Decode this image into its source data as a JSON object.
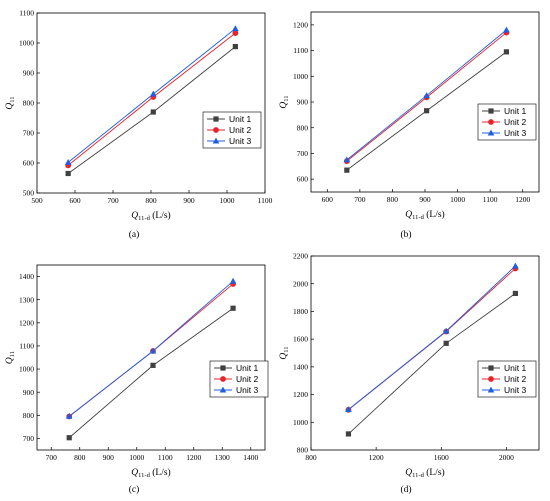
{
  "colors": {
    "unit1": "#404040",
    "unit2": "#e8232b",
    "unit3": "#1f5fe0"
  },
  "chart_data": [
    {
      "panel_label": "(a)",
      "type": "line",
      "xlabel": {
        "main": "Q",
        "sub": "11-d",
        "unit": " (L/s)"
      },
      "ylabel": {
        "main": "Q",
        "sub": "11"
      },
      "xlim": [
        500,
        1100
      ],
      "xticks": [
        500,
        600,
        700,
        800,
        900,
        1000,
        1100
      ],
      "ylim": [
        500,
        1100
      ],
      "yticks": [
        500,
        600,
        700,
        800,
        900,
        1000,
        1100
      ],
      "legend_position": "center-right",
      "series": [
        {
          "name": "Unit 1",
          "marker": "square",
          "x": [
            582,
            806,
            1022
          ],
          "y": [
            565,
            770,
            988
          ]
        },
        {
          "name": "Unit 2",
          "marker": "circle",
          "x": [
            582,
            806,
            1022
          ],
          "y": [
            592,
            820,
            1033
          ]
        },
        {
          "name": "Unit 3",
          "marker": "triangle",
          "x": [
            582,
            806,
            1022
          ],
          "y": [
            602,
            830,
            1048
          ]
        }
      ]
    },
    {
      "panel_label": "(b)",
      "type": "line",
      "xlabel": {
        "main": "Q",
        "sub": "11-d",
        "unit": " (L/s)"
      },
      "ylabel": {
        "main": "Q",
        "sub": "11"
      },
      "xlim": [
        550,
        1250
      ],
      "xticks": [
        600,
        700,
        800,
        900,
        1000,
        1100,
        1200
      ],
      "ylim": [
        550,
        1250
      ],
      "yticks": [
        600,
        700,
        800,
        900,
        1000,
        1100,
        1200
      ],
      "legend_position": "bottom-right",
      "series": [
        {
          "name": "Unit 1",
          "marker": "square",
          "x": [
            660,
            905,
            1150
          ],
          "y": [
            635,
            866,
            1095
          ]
        },
        {
          "name": "Unit 2",
          "marker": "circle",
          "x": [
            660,
            905,
            1150
          ],
          "y": [
            670,
            918,
            1170
          ]
        },
        {
          "name": "Unit 3",
          "marker": "triangle",
          "x": [
            660,
            905,
            1150
          ],
          "y": [
            675,
            925,
            1180
          ]
        }
      ]
    },
    {
      "panel_label": "(c)",
      "type": "line",
      "xlabel": {
        "main": "Q",
        "sub": "11-d",
        "unit": " (L/s)"
      },
      "ylabel": {
        "main": "Q",
        "sub": "11"
      },
      "xlim": [
        650,
        1450
      ],
      "xticks": [
        700,
        800,
        900,
        1000,
        1100,
        1200,
        1300,
        1400
      ],
      "ylim": [
        650,
        1450
      ],
      "yticks": [
        700,
        800,
        900,
        1000,
        1100,
        1200,
        1300,
        1400
      ],
      "legend_position": "bottom-right",
      "series": [
        {
          "name": "Unit 1",
          "marker": "square",
          "x": [
            763,
            1057,
            1338
          ],
          "y": [
            703,
            1016,
            1263
          ]
        },
        {
          "name": "Unit 2",
          "marker": "circle",
          "x": [
            763,
            1057,
            1338
          ],
          "y": [
            795,
            1078,
            1368
          ]
        },
        {
          "name": "Unit 3",
          "marker": "triangle",
          "x": [
            763,
            1057,
            1338
          ],
          "y": [
            796,
            1078,
            1380
          ]
        }
      ]
    },
    {
      "panel_label": "(d)",
      "type": "line",
      "xlabel": {
        "main": "Q",
        "sub": "11-d",
        "unit": " (L/s)"
      },
      "ylabel": {
        "main": "Q",
        "sub": "11"
      },
      "xlim": [
        800,
        2200
      ],
      "xticks": [
        800,
        1200,
        1600,
        2000
      ],
      "ylim": [
        800,
        2200
      ],
      "yticks": [
        800,
        1000,
        1200,
        1400,
        1600,
        1800,
        2000,
        2200
      ],
      "legend_position": "bottom-right",
      "series": [
        {
          "name": "Unit 1",
          "marker": "square",
          "x": [
            1030,
            1630,
            2055
          ],
          "y": [
            916,
            1570,
            1930
          ]
        },
        {
          "name": "Unit 2",
          "marker": "circle",
          "x": [
            1030,
            1630,
            2055
          ],
          "y": [
            1090,
            1655,
            2110
          ]
        },
        {
          "name": "Unit 3",
          "marker": "triangle",
          "x": [
            1030,
            1630,
            2055
          ],
          "y": [
            1092,
            1658,
            2128
          ]
        }
      ]
    }
  ]
}
